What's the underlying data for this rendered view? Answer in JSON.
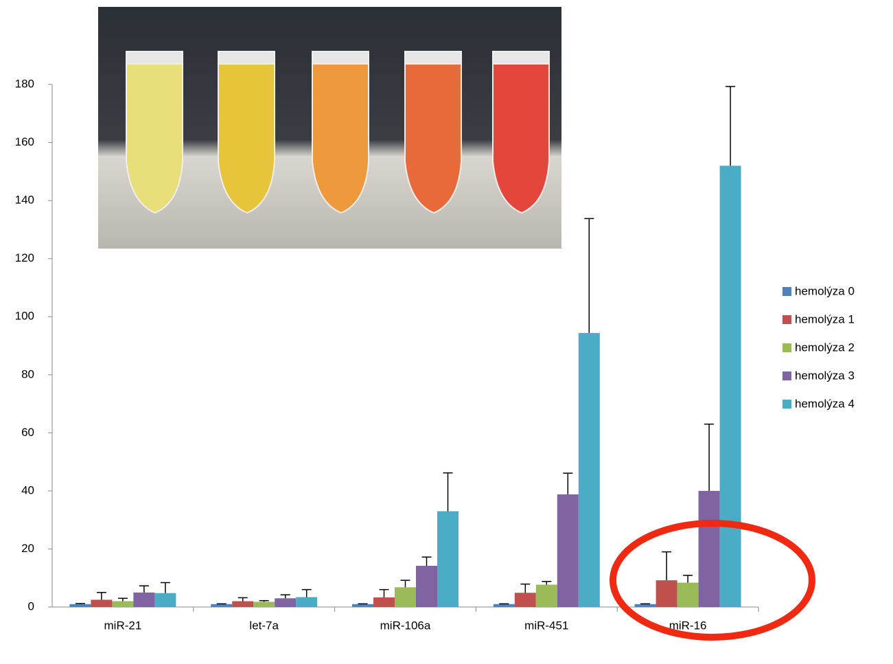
{
  "chart_data": {
    "type": "bar",
    "categories": [
      "miR-21",
      "let-7a",
      "miR-106a",
      "miR-451",
      "miR-16"
    ],
    "series": [
      {
        "name": "hemolýza 0",
        "color": "#4f81bd",
        "values": [
          1,
          1,
          1,
          1,
          1
        ],
        "errors": [
          0.2,
          0.1,
          0.1,
          0.1,
          0.1
        ]
      },
      {
        "name": "hemolýza 1",
        "color": "#c0504d",
        "values": [
          2.5,
          2,
          3.3,
          4.9,
          9.2
        ],
        "errors": [
          2.5,
          1.2,
          2.7,
          3,
          9.8
        ]
      },
      {
        "name": "hemolýza 2",
        "color": "#9bbb59",
        "values": [
          2,
          1.8,
          6.8,
          7.7,
          8.4
        ],
        "errors": [
          1,
          0.4,
          2.4,
          1.1,
          2.5
        ]
      },
      {
        "name": "hemolýza 3",
        "color": "#8064a2",
        "values": [
          5,
          3,
          14.2,
          38.8,
          40
        ],
        "errors": [
          2.3,
          1.2,
          3,
          7.3,
          23
        ]
      },
      {
        "name": "hemolýza 4",
        "color": "#4bacc6",
        "values": [
          4.8,
          3.4,
          33,
          94.4,
          152
        ],
        "errors": [
          3.6,
          2.6,
          13.2,
          39.4,
          27.3
        ]
      }
    ],
    "ylim": [
      0,
      180
    ],
    "yticks": [
      0,
      20,
      40,
      60,
      80,
      100,
      120,
      140,
      160,
      180
    ],
    "grid": false,
    "legend": "right"
  }
}
